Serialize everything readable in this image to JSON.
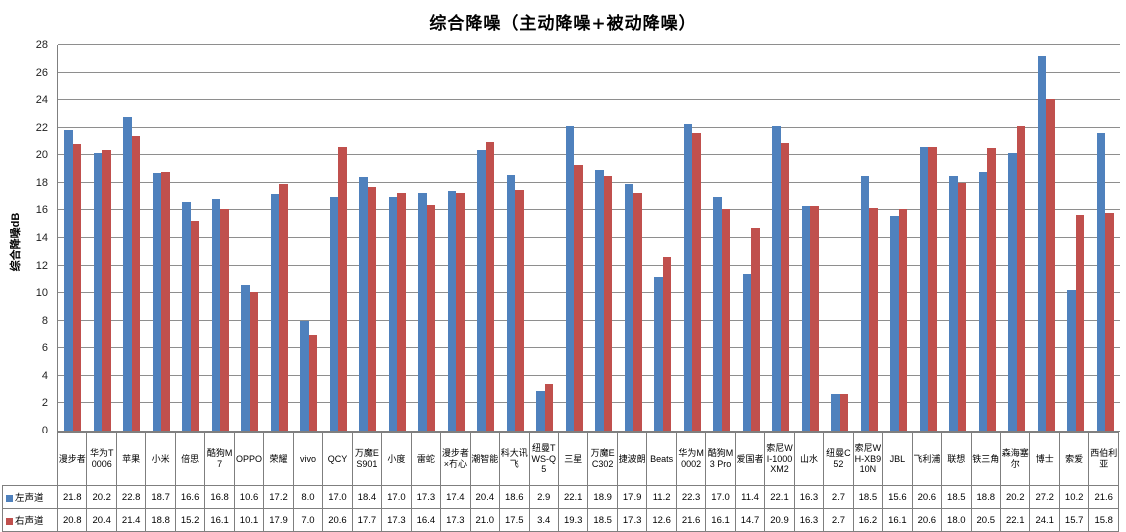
{
  "chart_data": {
    "type": "bar",
    "title": "综合降噪（主动降噪+被动降噪）",
    "xlabel": "",
    "ylabel": "综合降噪dB",
    "ylim": [
      0,
      28
    ],
    "ytick_step": 2,
    "grid": true,
    "legend_position": "table-rows-left",
    "categories": [
      "漫步者",
      "华为T0006",
      "苹果",
      "小米",
      "倍思",
      "酷狗M7",
      "OPPO",
      "荣耀",
      "vivo",
      "QCY",
      "万魔ES901",
      "小度",
      "雷蛇",
      "漫步者×冇心",
      "潮智能",
      "科大讯飞",
      "纽曼TWS-Q5",
      "三星",
      "万魔EC302",
      "捷波朗",
      "Beats",
      "华为M0002",
      "酷狗M3 Pro",
      "爱国者",
      "索尼WI-1000XM2",
      "山水",
      "纽曼C52",
      "索尼WH-XB910N",
      "JBL",
      "飞利浦",
      "联想",
      "铁三角",
      "森海塞尔",
      "博士",
      "索爱",
      "西伯利亚"
    ],
    "series": [
      {
        "name": "左声道",
        "color": "#4F81BD",
        "values": [
          21.8,
          20.2,
          22.8,
          18.7,
          16.6,
          16.8,
          10.6,
          17.2,
          8.0,
          17.0,
          18.4,
          17.0,
          17.3,
          17.4,
          20.4,
          18.6,
          2.9,
          22.1,
          18.9,
          17.9,
          11.2,
          22.3,
          17.0,
          11.4,
          22.1,
          16.3,
          2.7,
          18.5,
          15.6,
          20.6,
          18.5,
          18.8,
          20.2,
          27.2,
          10.2,
          21.6
        ]
      },
      {
        "name": "右声道",
        "color": "#C0504D",
        "values": [
          20.8,
          20.4,
          21.4,
          18.8,
          15.2,
          16.1,
          10.1,
          17.9,
          7.0,
          20.6,
          17.7,
          17.3,
          16.4,
          17.3,
          21.0,
          17.5,
          3.4,
          19.3,
          18.5,
          17.3,
          12.6,
          21.6,
          16.1,
          14.7,
          20.9,
          16.3,
          2.7,
          16.2,
          16.1,
          20.6,
          18.0,
          20.5,
          22.1,
          24.1,
          15.7,
          15.8
        ]
      }
    ],
    "gridline_color": "#8e8e8e",
    "axis_color": "#7f7f7f"
  }
}
